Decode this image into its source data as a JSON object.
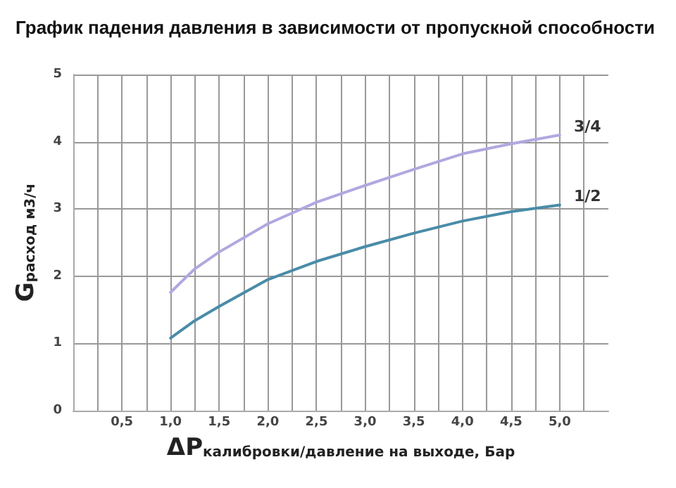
{
  "chart_data": {
    "type": "line",
    "title": "График падения давления в зависимости от пропускной способности",
    "xlabel": "ΔP$_{калибровки/давление на выходе, Бар}$",
    "ylabel": "G$_{расход м3/ч}$",
    "x": [
      1.0,
      1.25,
      1.5,
      2.0,
      2.5,
      3.0,
      3.5,
      4.0,
      4.5,
      5.0
    ],
    "series": [
      {
        "name": "3/4",
        "color": "#b0a8e0",
        "values": [
          1.76,
          2.11,
          2.36,
          2.78,
          3.1,
          3.35,
          3.59,
          3.82,
          3.97,
          4.1
        ]
      },
      {
        "name": "1/2",
        "color": "#4a8ca8",
        "values": [
          1.08,
          1.34,
          1.55,
          1.95,
          2.22,
          2.44,
          2.64,
          2.82,
          2.96,
          3.06
        ]
      }
    ],
    "xlim": [
      0,
      5.5
    ],
    "xticks": [
      {
        "value": 0.25,
        "label": null
      },
      {
        "value": 0.5,
        "label": "0,5"
      },
      {
        "value": 0.75,
        "label": null
      },
      {
        "value": 1.0,
        "label": "1,0"
      },
      {
        "value": 1.25,
        "label": null
      },
      {
        "value": 1.5,
        "label": "1,5"
      },
      {
        "value": 1.75,
        "label": null
      },
      {
        "value": 2.0,
        "label": "2,0"
      },
      {
        "value": 2.25,
        "label": null
      },
      {
        "value": 2.5,
        "label": "2,5"
      },
      {
        "value": 2.75,
        "label": null
      },
      {
        "value": 3.0,
        "label": "3,0"
      },
      {
        "value": 3.25,
        "label": null
      },
      {
        "value": 3.5,
        "label": "3,5"
      },
      {
        "value": 3.75,
        "label": null
      },
      {
        "value": 4.0,
        "label": "4,0"
      },
      {
        "value": 4.25,
        "label": null
      },
      {
        "value": 4.5,
        "label": "4,5"
      },
      {
        "value": 4.75,
        "label": null
      },
      {
        "value": 5.0,
        "label": "5,0"
      },
      {
        "value": 5.25,
        "label": null
      }
    ],
    "ylim": [
      0,
      5
    ],
    "yticks": [
      0,
      1,
      2,
      3,
      4,
      5
    ],
    "grid": true,
    "marker": "none",
    "line_style": "solid",
    "legend": false
  }
}
